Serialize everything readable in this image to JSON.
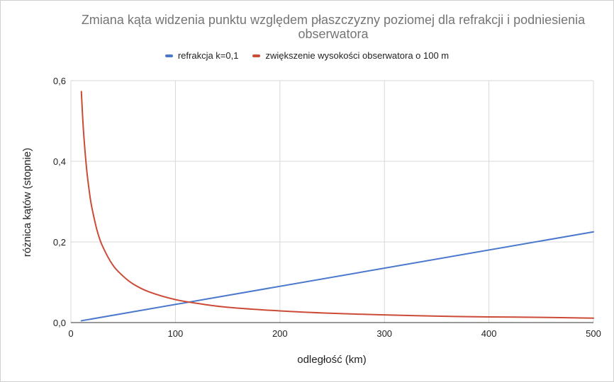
{
  "chart_data": {
    "type": "line",
    "title": "Zmiana kąta widzenia punktu względem płaszczyzny poziomej dla refrakcji i podniesienia obserwatora",
    "title_lines": [
      "Zmiana kąta widzenia punktu względem płaszczyzny poziomej dla refrakcji i podniesienia",
      "obserwatora"
    ],
    "xlabel": "odległość (km)",
    "ylabel": "różnica kątów (stopnie)",
    "xlim": [
      0,
      500
    ],
    "ylim": [
      0,
      0.6
    ],
    "x_ticks": [
      0,
      100,
      200,
      300,
      400,
      500
    ],
    "y_ticks": [
      0,
      0.2,
      0.4,
      0.6
    ],
    "x_tick_labels": [
      "0",
      "100",
      "200",
      "300",
      "400",
      "500"
    ],
    "y_tick_labels": [
      "0,0",
      "0,2",
      "0,4",
      "0,6"
    ],
    "grid": true,
    "legend_position": "top",
    "series": [
      {
        "name": "refrakcja k=0,1",
        "color": "#4a78cd",
        "x": [
          10,
          500
        ],
        "y": [
          0.0045,
          0.225
        ]
      },
      {
        "name": "zwiększenie wysokości obserwatora o 100 m",
        "color": "#cc4b37",
        "x": [
          10,
          12,
          15,
          18,
          20,
          25,
          30,
          40,
          50,
          60,
          75,
          100,
          125,
          150,
          200,
          250,
          300,
          350,
          400,
          450,
          500
        ],
        "y": [
          0.573,
          0.477,
          0.382,
          0.318,
          0.286,
          0.229,
          0.191,
          0.143,
          0.115,
          0.095,
          0.076,
          0.057,
          0.046,
          0.038,
          0.029,
          0.023,
          0.019,
          0.016,
          0.014,
          0.013,
          0.011
        ]
      }
    ]
  }
}
